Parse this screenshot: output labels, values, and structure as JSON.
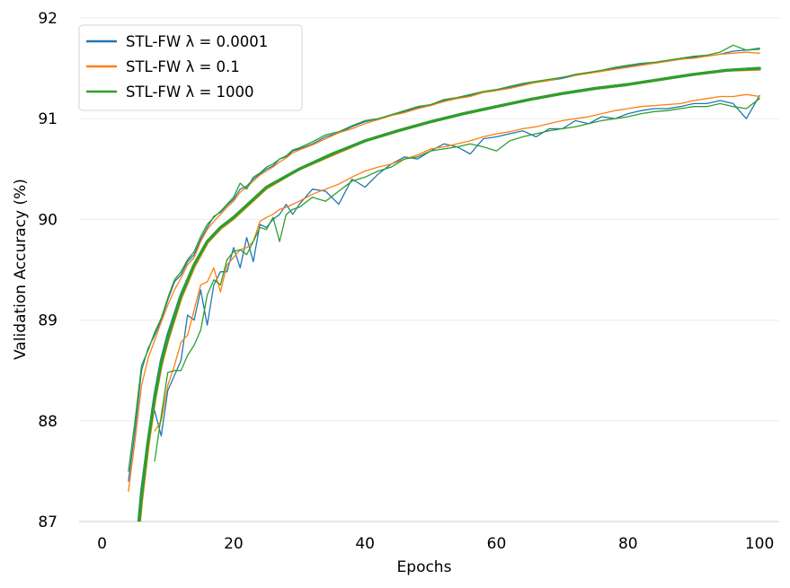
{
  "chart_data": {
    "type": "line",
    "title": "",
    "xlabel": "Epochs",
    "ylabel": "Validation Accuracy (%)",
    "xlim": [
      -3.5,
      103
    ],
    "ylim": [
      87,
      92
    ],
    "xticks": [
      0,
      20,
      40,
      60,
      80,
      100
    ],
    "yticks": [
      87,
      88,
      89,
      90,
      91,
      92
    ],
    "grid": "horizontal",
    "legend": "top-left",
    "colors": {
      "blue": "#1f77b4",
      "orange": "#ff7f0e",
      "green": "#2ca02c"
    },
    "legend_entries": [
      {
        "label": "STL-FW λ = 0.0001",
        "color": "#1f77b4"
      },
      {
        "label": "STL-FW λ = 0.1",
        "color": "#ff7f0e"
      },
      {
        "label": "STL-FW λ = 1000",
        "color": "#2ca02c"
      }
    ],
    "series": [
      {
        "name": "STL-FW λ = 0.0001",
        "color": "#1f77b4",
        "role": "mean",
        "x": [
          5,
          6,
          7,
          8,
          9,
          10,
          12,
          14,
          16,
          18,
          20,
          25,
          30,
          35,
          40,
          45,
          50,
          55,
          60,
          65,
          70,
          75,
          80,
          85,
          90,
          95,
          100
        ],
        "y": [
          86.6,
          87.3,
          87.8,
          88.25,
          88.6,
          88.85,
          89.25,
          89.55,
          89.78,
          89.92,
          90.02,
          90.32,
          90.5,
          90.65,
          90.78,
          90.88,
          90.97,
          91.05,
          91.12,
          91.19,
          91.25,
          91.3,
          91.34,
          91.39,
          91.44,
          91.48,
          91.5
        ]
      },
      {
        "name": "STL-FW λ = 0.1",
        "color": "#ff7f0e",
        "role": "mean",
        "x": [
          5,
          6,
          7,
          8,
          9,
          10,
          12,
          14,
          16,
          18,
          20,
          25,
          30,
          35,
          40,
          45,
          50,
          55,
          60,
          65,
          70,
          75,
          80,
          85,
          90,
          95,
          100
        ],
        "y": [
          86.5,
          87.2,
          87.75,
          88.2,
          88.55,
          88.8,
          89.22,
          89.53,
          89.77,
          89.91,
          90.01,
          90.31,
          90.5,
          90.64,
          90.78,
          90.88,
          90.97,
          91.05,
          91.12,
          91.19,
          91.25,
          91.3,
          91.34,
          91.39,
          91.44,
          91.48,
          91.49
        ]
      },
      {
        "name": "STL-FW λ = 1000",
        "color": "#2ca02c",
        "role": "mean",
        "x": [
          5,
          6,
          7,
          8,
          9,
          10,
          12,
          14,
          16,
          18,
          20,
          25,
          30,
          35,
          40,
          45,
          50,
          55,
          60,
          65,
          70,
          75,
          80,
          85,
          90,
          95,
          100
        ],
        "y": [
          86.55,
          87.25,
          87.8,
          88.22,
          88.58,
          88.82,
          89.24,
          89.55,
          89.78,
          89.92,
          90.02,
          90.32,
          90.5,
          90.65,
          90.78,
          90.88,
          90.97,
          91.05,
          91.12,
          91.19,
          91.25,
          91.3,
          91.34,
          91.39,
          91.44,
          91.48,
          91.5
        ]
      },
      {
        "name": "STL-FW λ = 0.0001",
        "color": "#1f77b4",
        "role": "upper",
        "x": [
          4,
          5,
          6,
          7,
          8,
          9,
          10,
          11,
          12,
          13,
          14,
          15,
          16,
          17,
          18,
          19,
          20,
          21,
          22,
          23,
          24,
          25,
          26,
          27,
          28,
          29,
          30,
          32,
          34,
          36,
          38,
          40,
          42,
          44,
          46,
          48,
          50,
          52,
          54,
          56,
          58,
          60,
          62,
          64,
          66,
          68,
          70,
          72,
          74,
          76,
          78,
          80,
          82,
          84,
          86,
          88,
          90,
          92,
          94,
          96,
          98,
          100
        ],
        "y": [
          87.4,
          87.9,
          88.5,
          88.72,
          88.85,
          89.0,
          89.2,
          89.38,
          89.45,
          89.58,
          89.65,
          89.8,
          89.92,
          90.03,
          90.07,
          90.14,
          90.2,
          90.3,
          90.33,
          90.4,
          90.45,
          90.5,
          90.53,
          90.6,
          90.62,
          90.68,
          90.7,
          90.75,
          90.82,
          90.86,
          90.92,
          90.97,
          91.0,
          91.03,
          91.07,
          91.11,
          91.13,
          91.18,
          91.2,
          91.23,
          91.26,
          91.28,
          91.31,
          91.34,
          91.36,
          91.38,
          91.4,
          91.43,
          91.46,
          91.47,
          91.5,
          91.52,
          91.54,
          91.55,
          91.57,
          91.59,
          91.61,
          91.62,
          91.64,
          91.67,
          91.68,
          91.7
        ]
      },
      {
        "name": "STL-FW λ = 0.1",
        "color": "#ff7f0e",
        "role": "upper",
        "x": [
          4,
          5,
          6,
          7,
          8,
          9,
          10,
          11,
          12,
          13,
          14,
          15,
          16,
          17,
          18,
          19,
          20,
          21,
          22,
          23,
          24,
          25,
          26,
          27,
          28,
          29,
          30,
          32,
          34,
          36,
          38,
          40,
          42,
          44,
          46,
          48,
          50,
          52,
          54,
          56,
          58,
          60,
          62,
          64,
          66,
          68,
          70,
          72,
          74,
          76,
          78,
          80,
          82,
          84,
          86,
          88,
          90,
          92,
          94,
          96,
          98,
          100
        ],
        "y": [
          87.3,
          87.8,
          88.35,
          88.62,
          88.8,
          88.98,
          89.15,
          89.3,
          89.42,
          89.55,
          89.62,
          89.78,
          89.9,
          89.98,
          90.05,
          90.12,
          90.18,
          90.27,
          90.32,
          90.38,
          90.44,
          90.48,
          90.52,
          90.57,
          90.61,
          90.66,
          90.69,
          90.74,
          90.8,
          90.86,
          90.9,
          90.95,
          90.99,
          91.03,
          91.06,
          91.1,
          91.13,
          91.17,
          91.2,
          91.22,
          91.26,
          91.28,
          91.3,
          91.33,
          91.36,
          91.38,
          91.41,
          91.43,
          91.45,
          91.47,
          91.49,
          91.51,
          91.53,
          91.55,
          91.57,
          91.59,
          91.6,
          91.62,
          91.64,
          91.65,
          91.66,
          91.65
        ]
      },
      {
        "name": "STL-FW λ = 1000",
        "color": "#2ca02c",
        "role": "upper",
        "x": [
          4,
          5,
          6,
          7,
          8,
          9,
          10,
          11,
          12,
          13,
          14,
          15,
          16,
          17,
          18,
          19,
          20,
          21,
          22,
          23,
          24,
          25,
          26,
          27,
          28,
          29,
          30,
          32,
          34,
          36,
          38,
          40,
          42,
          44,
          46,
          48,
          50,
          52,
          54,
          56,
          58,
          60,
          62,
          64,
          66,
          68,
          70,
          72,
          74,
          76,
          78,
          80,
          82,
          84,
          86,
          88,
          90,
          92,
          94,
          96,
          98,
          100
        ],
        "y": [
          87.5,
          88.0,
          88.55,
          88.7,
          88.88,
          89.02,
          89.22,
          89.4,
          89.48,
          89.6,
          89.68,
          89.83,
          89.95,
          90.02,
          90.08,
          90.15,
          90.22,
          90.36,
          90.3,
          90.42,
          90.46,
          90.52,
          90.55,
          90.6,
          90.63,
          90.69,
          90.71,
          90.77,
          90.84,
          90.87,
          90.93,
          90.98,
          91.0,
          91.04,
          91.08,
          91.12,
          91.14,
          91.19,
          91.21,
          91.24,
          91.27,
          91.29,
          91.32,
          91.35,
          91.37,
          91.39,
          91.41,
          91.44,
          91.46,
          91.48,
          91.51,
          91.53,
          91.55,
          91.56,
          91.58,
          91.6,
          91.62,
          91.63,
          91.66,
          91.73,
          91.68,
          91.69
        ]
      },
      {
        "name": "STL-FW λ = 0.0001",
        "color": "#1f77b4",
        "role": "lower",
        "x": [
          8,
          9,
          10,
          11,
          12,
          13,
          14,
          15,
          16,
          17,
          18,
          19,
          20,
          21,
          22,
          23,
          24,
          25,
          26,
          27,
          28,
          29,
          30,
          32,
          34,
          36,
          38,
          40,
          42,
          44,
          46,
          48,
          50,
          52,
          54,
          56,
          58,
          60,
          62,
          64,
          66,
          68,
          70,
          72,
          74,
          76,
          78,
          80,
          82,
          84,
          86,
          88,
          90,
          92,
          94,
          96,
          98,
          100
        ],
        "y": [
          88.1,
          87.85,
          88.3,
          88.45,
          88.6,
          89.05,
          89.0,
          89.3,
          88.95,
          89.35,
          89.48,
          89.48,
          89.72,
          89.52,
          89.82,
          89.58,
          89.95,
          89.92,
          90.0,
          90.05,
          90.15,
          90.05,
          90.15,
          90.3,
          90.28,
          90.15,
          90.4,
          90.32,
          90.45,
          90.55,
          90.62,
          90.6,
          90.68,
          90.75,
          90.72,
          90.65,
          90.8,
          90.82,
          90.85,
          90.88,
          90.82,
          90.9,
          90.9,
          90.98,
          90.95,
          91.02,
          91.0,
          91.05,
          91.08,
          91.1,
          91.1,
          91.12,
          91.15,
          91.15,
          91.18,
          91.15,
          91.0,
          91.23
        ]
      },
      {
        "name": "STL-FW λ = 0.1",
        "color": "#ff7f0e",
        "role": "lower",
        "x": [
          8,
          9,
          10,
          11,
          12,
          13,
          14,
          15,
          16,
          17,
          18,
          19,
          20,
          21,
          22,
          23,
          24,
          25,
          26,
          27,
          28,
          29,
          30,
          32,
          34,
          36,
          38,
          40,
          42,
          44,
          46,
          48,
          50,
          52,
          54,
          56,
          58,
          60,
          62,
          64,
          66,
          68,
          70,
          72,
          74,
          76,
          78,
          80,
          82,
          84,
          86,
          88,
          90,
          92,
          94,
          96,
          98,
          100
        ],
        "y": [
          87.9,
          88.0,
          88.35,
          88.55,
          88.78,
          88.85,
          89.1,
          89.35,
          89.38,
          89.52,
          89.28,
          89.55,
          89.62,
          89.7,
          89.72,
          89.78,
          89.98,
          90.02,
          90.05,
          90.1,
          90.12,
          90.15,
          90.18,
          90.25,
          90.3,
          90.35,
          90.42,
          90.48,
          90.52,
          90.55,
          90.6,
          90.64,
          90.7,
          90.72,
          90.75,
          90.78,
          90.82,
          90.85,
          90.87,
          90.9,
          90.92,
          90.95,
          90.98,
          91.0,
          91.02,
          91.05,
          91.08,
          91.1,
          91.12,
          91.13,
          91.14,
          91.15,
          91.18,
          91.2,
          91.22,
          91.22,
          91.24,
          91.22
        ]
      },
      {
        "name": "STL-FW λ = 1000",
        "color": "#2ca02c",
        "role": "lower",
        "x": [
          8,
          9,
          10,
          11,
          12,
          13,
          14,
          15,
          16,
          17,
          18,
          19,
          20,
          21,
          22,
          23,
          24,
          25,
          26,
          27,
          28,
          29,
          30,
          32,
          34,
          36,
          38,
          40,
          42,
          44,
          46,
          48,
          50,
          52,
          54,
          56,
          58,
          60,
          62,
          64,
          66,
          68,
          70,
          72,
          74,
          76,
          78,
          80,
          82,
          84,
          86,
          88,
          90,
          92,
          94,
          96,
          98,
          100
        ],
        "y": [
          87.6,
          88.05,
          88.48,
          88.5,
          88.5,
          88.65,
          88.75,
          88.9,
          89.25,
          89.4,
          89.35,
          89.6,
          89.68,
          89.7,
          89.65,
          89.78,
          89.92,
          89.9,
          90.02,
          89.78,
          90.05,
          90.1,
          90.12,
          90.22,
          90.18,
          90.28,
          90.38,
          90.42,
          90.48,
          90.52,
          90.6,
          90.62,
          90.68,
          90.7,
          90.72,
          90.75,
          90.72,
          90.68,
          90.78,
          90.82,
          90.85,
          90.88,
          90.9,
          90.92,
          90.95,
          90.98,
          91.0,
          91.02,
          91.05,
          91.07,
          91.08,
          91.1,
          91.12,
          91.12,
          91.15,
          91.12,
          91.1,
          91.2
        ]
      }
    ]
  }
}
